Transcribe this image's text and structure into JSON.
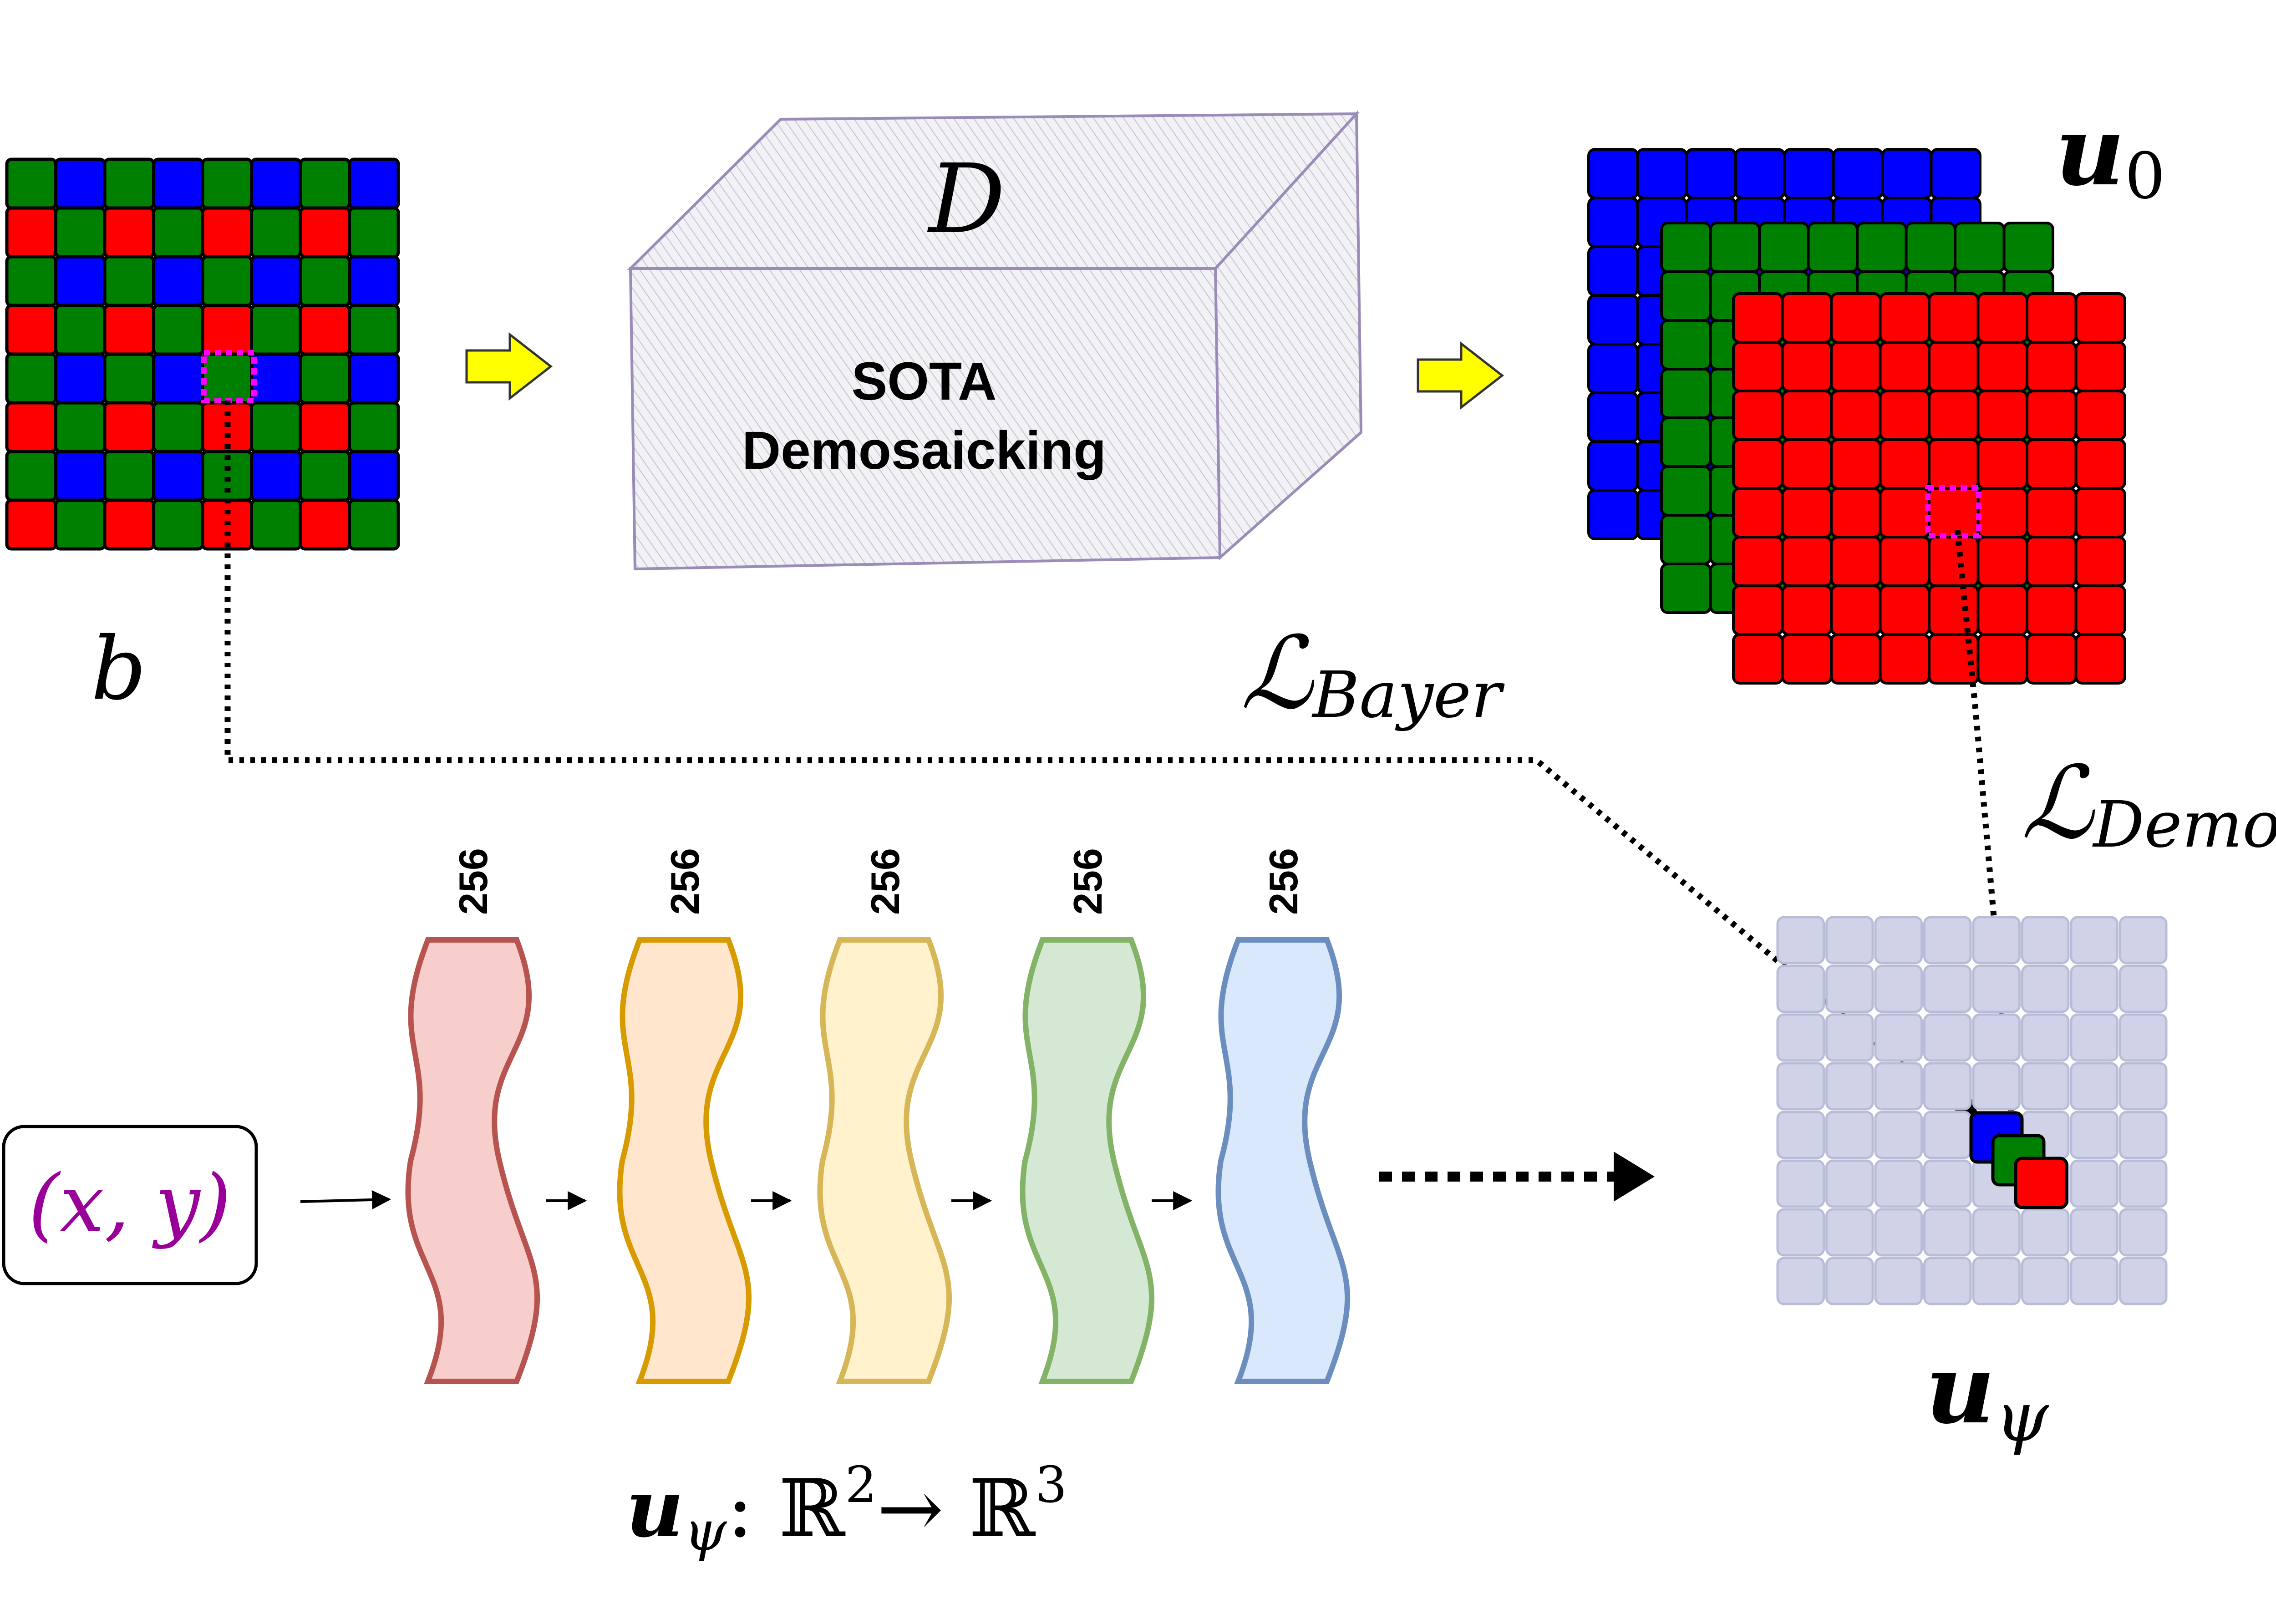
{
  "colors": {
    "bayer_red": "#ff0000",
    "bayer_green": "#008000",
    "bayer_blue": "#0000ff",
    "arrow_yellow": "#ffff00",
    "highlight_magenta": "#ff00ff",
    "output_grid": "#d0d3e8",
    "coord_purple": "#990099",
    "layer_colors": [
      {
        "fill": "#f8cecc",
        "stroke": "#b85450"
      },
      {
        "fill": "#ffe6cc",
        "stroke": "#d79b00"
      },
      {
        "fill": "#fff2cc",
        "stroke": "#d6b656"
      },
      {
        "fill": "#d5e8d4",
        "stroke": "#82b366"
      },
      {
        "fill": "#dae8fc",
        "stroke": "#6c8ebf"
      }
    ]
  },
  "labels": {
    "bayer_label": "b",
    "box_label": "D",
    "box_text_line1": "SOTA",
    "box_text_line2": "Demosaicking",
    "u0_label_main": "u",
    "u0_label_sub": "0",
    "loss_bayer_main": "ℒ",
    "loss_bayer_sub": "Bayer",
    "loss_demo_main": "ℒ",
    "loss_demo_sub": "Demo",
    "input_coords": "(x, y)",
    "u_psi_main": "u",
    "u_psi_sub": "ψ",
    "mapping_main": "u",
    "mapping_sub": "ψ",
    "mapping_rest": ": ℝ",
    "mapping_exp1": "2",
    "mapping_arrow": "→ ℝ",
    "mapping_exp2": "3"
  },
  "layers": [
    {
      "width": "256"
    },
    {
      "width": "256"
    },
    {
      "width": "256"
    },
    {
      "width": "256"
    },
    {
      "width": "256"
    }
  ]
}
